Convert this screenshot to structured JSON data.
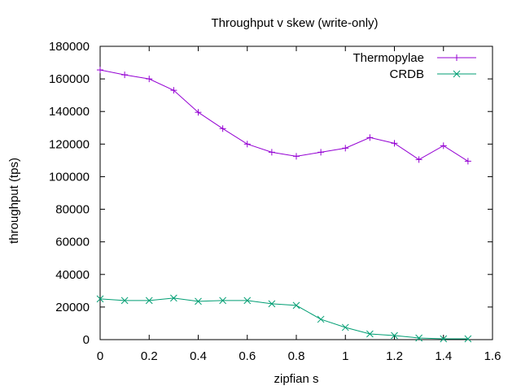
{
  "chart_data": {
    "type": "line",
    "title": "Throughput v skew (write-only)",
    "xlabel": "zipfian s",
    "ylabel": "throughput (tps)",
    "xlim": [
      0,
      1.6
    ],
    "ylim": [
      0,
      180000
    ],
    "xticks": [
      0,
      0.2,
      0.4,
      0.6,
      0.8,
      1,
      1.2,
      1.4,
      1.6
    ],
    "xtick_labels": [
      "0",
      "0.2",
      "0.4",
      "0.6",
      "0.8",
      "1",
      "1.2",
      "1.4",
      "1.6"
    ],
    "yticks": [
      0,
      20000,
      40000,
      60000,
      80000,
      100000,
      120000,
      140000,
      160000,
      180000
    ],
    "ytick_labels": [
      "0",
      "20000",
      "40000",
      "60000",
      "80000",
      "100000",
      "120000",
      "140000",
      "160000",
      "180000"
    ],
    "grid": false,
    "legend_position": "top-right",
    "x": [
      0,
      0.1,
      0.2,
      0.3,
      0.4,
      0.5,
      0.6,
      0.7,
      0.8,
      0.9,
      1.0,
      1.1,
      1.2,
      1.3,
      1.4,
      1.5
    ],
    "series": [
      {
        "name": "Thermopylae",
        "color": "#9400d3",
        "marker": "plus",
        "values": [
          165500,
          162500,
          160000,
          153000,
          139500,
          129500,
          120000,
          115000,
          112500,
          115000,
          117500,
          124000,
          120500,
          110500,
          119000,
          109500
        ]
      },
      {
        "name": "CRDB",
        "color": "#009e73",
        "marker": "cross",
        "values": [
          25000,
          24000,
          24000,
          25500,
          23500,
          24000,
          24000,
          22000,
          21000,
          12500,
          7500,
          3500,
          2500,
          1000,
          500,
          500
        ]
      }
    ]
  }
}
